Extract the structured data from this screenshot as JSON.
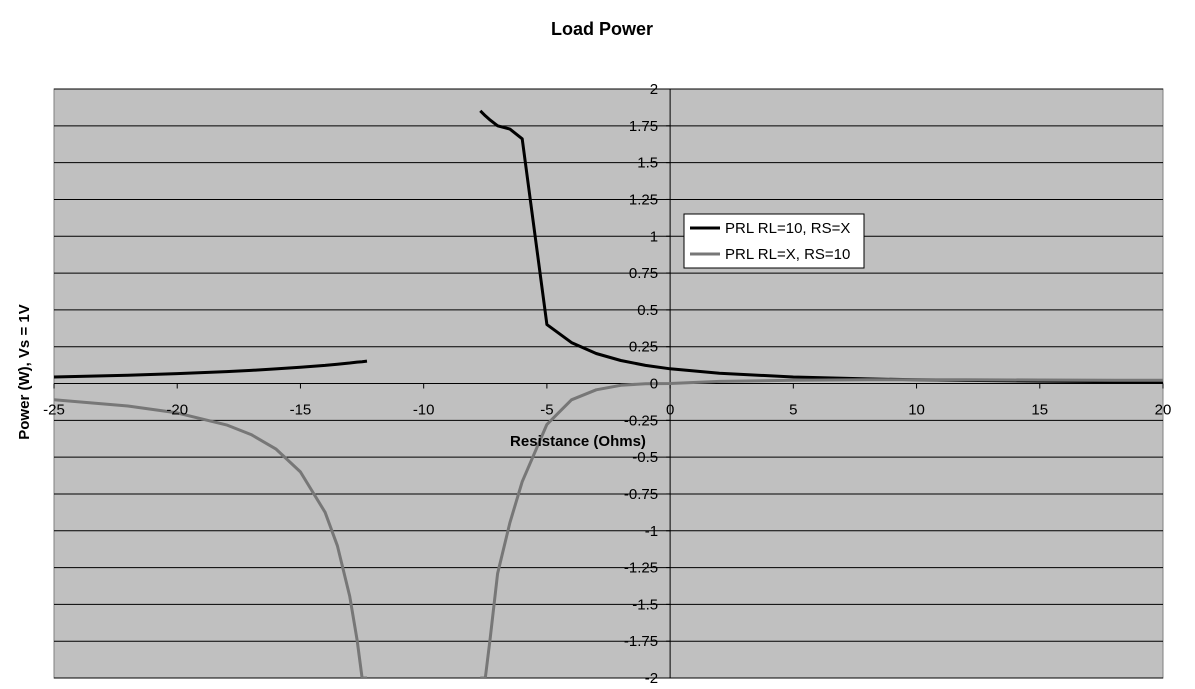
{
  "chart_data": {
    "type": "line",
    "title": "Load Power",
    "xlabel": "Resistance (Ohms)",
    "ylabel": "Power (W), Vs = 1V",
    "xlim": [
      -25,
      20
    ],
    "ylim": [
      -2,
      2
    ],
    "x_ticks": [
      "-25",
      "-20",
      "-15",
      "-10",
      "-5",
      "0",
      "5",
      "10",
      "15",
      "20"
    ],
    "y_ticks": [
      "2",
      "1.75",
      "1.5",
      "1.25",
      "1",
      "0.75",
      "0.5",
      "0.25",
      "0",
      "-0.25",
      "-0.5",
      "-0.75",
      "-1",
      "-1.25",
      "-1.5",
      "-1.75",
      "-2"
    ],
    "grid": "horizontal major gridlines",
    "legend_position": "center-right",
    "colors": {
      "plot_background": "#c0c0c0",
      "gridline": "#000000",
      "series_1": "#000000",
      "series_2": "#777777"
    },
    "series": [
      {
        "name": "PRL RL=10, RS=X",
        "color": "#000000",
        "x": [
          -25,
          -22,
          -20,
          -18,
          -17,
          -16,
          -15,
          -14,
          -13.5,
          -13,
          -12.7,
          -12.5,
          -12.3,
          -7.7,
          -7.5,
          -7.3,
          -7,
          -6.5,
          -6,
          -5,
          -4,
          -3,
          -2,
          -1,
          0,
          2,
          5,
          8,
          10,
          12,
          15,
          18,
          20
        ],
        "y": [
          0.044,
          0.056,
          0.067,
          0.081,
          0.089,
          0.099,
          0.111,
          0.123,
          0.131,
          0.139,
          0.145,
          0.148,
          0.152,
          1.852,
          1.818,
          1.789,
          1.75,
          1.728,
          1.662,
          0.4,
          0.278,
          0.204,
          0.156,
          0.123,
          0.1,
          0.069,
          0.044,
          0.031,
          0.025,
          0.021,
          0.016,
          0.013,
          0.011
        ]
      },
      {
        "name": "PRL RL=X, RS=10",
        "color": "#777777",
        "x": [
          -25,
          -22,
          -20,
          -18,
          -17,
          -16,
          -15,
          -14,
          -13.5,
          -13,
          -12.7,
          -12.5,
          -12.3,
          -7.7,
          -7.5,
          -7.3,
          -7,
          -6.5,
          -6,
          -5,
          -4,
          -3,
          -2,
          -1,
          0,
          2,
          5,
          8,
          10,
          12,
          15,
          18,
          20
        ],
        "y": [
          -0.111,
          -0.153,
          -0.2,
          -0.281,
          -0.347,
          -0.444,
          -0.6,
          -0.875,
          -1.102,
          -1.444,
          -1.742,
          -2.0,
          -2.0,
          -2.0,
          -2.0,
          -1.73,
          -1.29,
          -0.945,
          -0.667,
          -0.278,
          -0.111,
          -0.043,
          -0.0125,
          -0.00123,
          0,
          0.014,
          0.022,
          0.025,
          0.025,
          0.025,
          0.024,
          0.022,
          0.022
        ]
      }
    ]
  }
}
